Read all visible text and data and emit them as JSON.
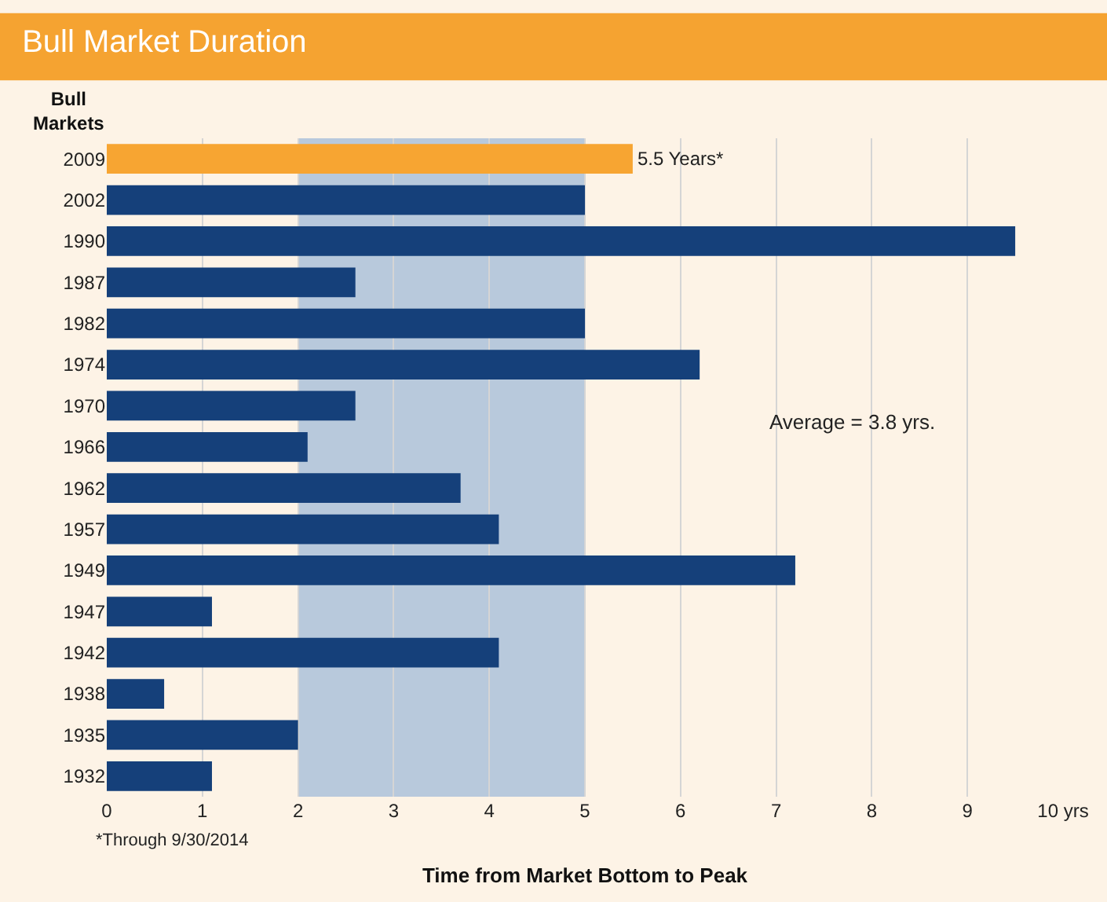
{
  "chart_data": {
    "type": "bar",
    "orientation": "horizontal",
    "title": "Bull Market Duration",
    "ylabel": "Bull Markets",
    "xlabel": "Time from Market Bottom to Peak",
    "categories": [
      "2009",
      "2002",
      "1990",
      "1987",
      "1982",
      "1974",
      "1970",
      "1966",
      "1962",
      "1957",
      "1949",
      "1947",
      "1942",
      "1938",
      "1935",
      "1932"
    ],
    "values": [
      5.5,
      5.0,
      9.5,
      2.6,
      5.0,
      6.2,
      2.6,
      2.1,
      3.7,
      4.1,
      7.2,
      1.1,
      4.1,
      0.6,
      2.0,
      1.1
    ],
    "colors": [
      "#f7a532",
      "#15407a",
      "#15407a",
      "#15407a",
      "#15407a",
      "#15407a",
      "#15407a",
      "#15407a",
      "#15407a",
      "#15407a",
      "#15407a",
      "#15407a",
      "#15407a",
      "#15407a",
      "#15407a",
      "#15407a"
    ],
    "value_labels": [
      "5.5 Years*",
      null,
      null,
      null,
      null,
      null,
      null,
      null,
      null,
      null,
      null,
      null,
      null,
      null,
      null,
      null
    ],
    "xlim": [
      0,
      10
    ],
    "xticks": [
      0,
      1,
      2,
      3,
      4,
      5,
      6,
      7,
      8,
      9,
      {
        "value": 10,
        "label": "10 yrs"
      }
    ],
    "bands": [
      {
        "axis": "x",
        "from": 2,
        "to": 5,
        "color": "#b8c9dc"
      }
    ],
    "grid": "x",
    "legend": false,
    "annotations": [
      "Average = 3.8 yrs.",
      "*Through 9/30/2014"
    ]
  }
}
